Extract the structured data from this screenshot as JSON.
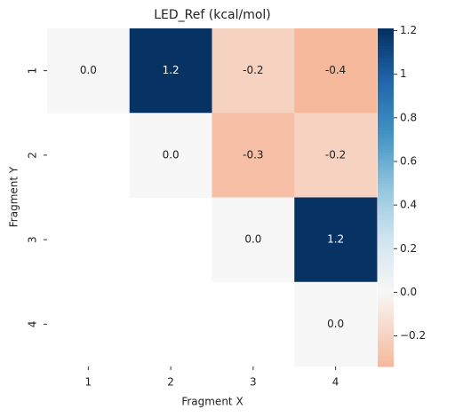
{
  "chart_data": {
    "type": "heatmap",
    "title": "LED_Ref (kcal/mol)",
    "x_label": "Fragment X",
    "y_label": "Fragment Y",
    "x_categories": [
      "1",
      "2",
      "3",
      "4"
    ],
    "y_categories": [
      "1",
      "2",
      "3",
      "4"
    ],
    "values": [
      [
        0,
        1.2,
        -0.2,
        -0.4
      ],
      [
        null,
        0,
        -0.3,
        -0.2
      ],
      [
        null,
        null,
        0,
        1.2
      ],
      [
        null,
        null,
        null,
        0
      ]
    ],
    "value_labels": [
      [
        "0.0",
        "1.2",
        "-0.2",
        "-0.4"
      ],
      [
        null,
        "0.0",
        "-0.3",
        "-0.2"
      ],
      [
        null,
        null,
        "0.0",
        "1.2"
      ],
      [
        null,
        null,
        null,
        "0.0"
      ]
    ],
    "colorbar_lim": [
      -0.34,
      1.21
    ],
    "colorbar_ticks": [
      {
        "value": -0.2,
        "label": "−0.2"
      },
      {
        "value": 0,
        "label": "0.0"
      },
      0.2,
      0.4,
      0.6,
      0.8,
      1.0,
      1.2
    ],
    "colors": [
      "#f6b89b",
      "#f7f7f7",
      "#d1e5f0",
      "#92c5de",
      "#4393c3",
      "#2166ac",
      "#053061"
    ]
  }
}
